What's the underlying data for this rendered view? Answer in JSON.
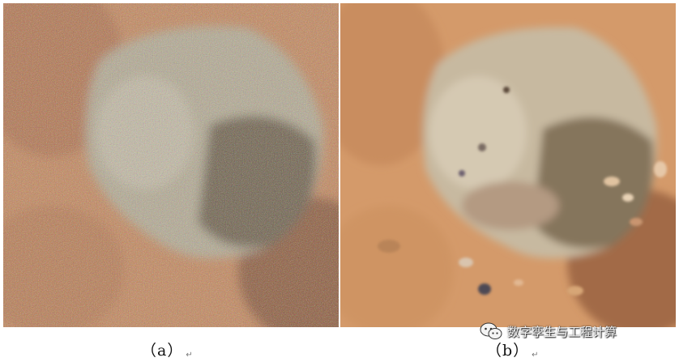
{
  "figure": {
    "panels": [
      {
        "id": "a",
        "label": "（a）",
        "subject": "noisy photo of rock fragment in reddish soil"
      },
      {
        "id": "b",
        "label": "（b）",
        "subject": "denoised photo of rock fragment in reddish soil"
      }
    ],
    "return_mark": "↵"
  },
  "watermark": {
    "text": "数字孪生与工程计算",
    "icon": "wechat-icon"
  },
  "colors": {
    "soil": "#c98b5e",
    "soil_dark": "#9c6644",
    "rock": "#b9ad95",
    "rock_shadow": "#6e6250",
    "background": "#ffffff"
  }
}
